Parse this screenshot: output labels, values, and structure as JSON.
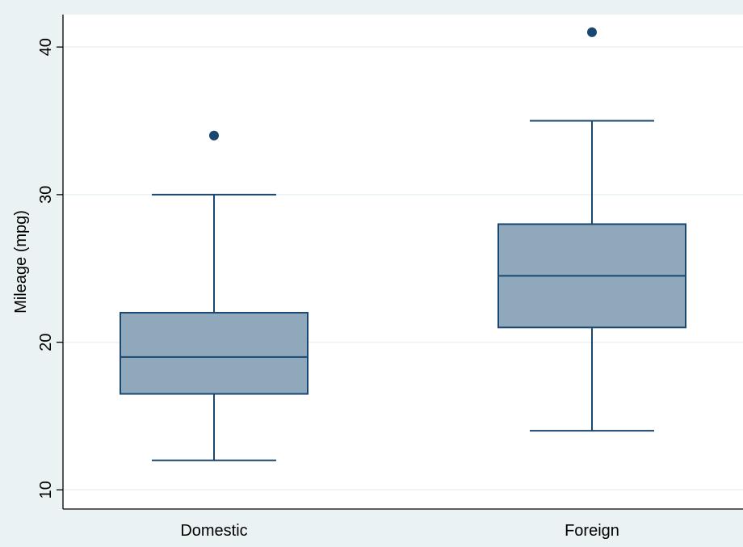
{
  "chart_data": {
    "type": "boxplot",
    "title": "",
    "xlabel": "",
    "ylabel": "Mileage (mpg)",
    "ylim": [
      8.7,
      42.2
    ],
    "yticks": [
      10,
      20,
      30,
      40
    ],
    "grid": true,
    "orientation": "vertical",
    "categories": [
      "Domestic",
      "Foreign"
    ],
    "boxes": [
      {
        "category": "Domestic",
        "whisker_low": 12,
        "q1": 16.5,
        "median": 19,
        "q3": 22,
        "whisker_high": 30,
        "outliers": [
          34
        ]
      },
      {
        "category": "Foreign",
        "whisker_low": 14,
        "q1": 21,
        "median": 24.5,
        "q3": 28,
        "whisker_high": 35,
        "outliers": [
          41
        ]
      }
    ],
    "colors": {
      "background": "#eaf2f3",
      "plot_area": "#ffffff",
      "grid": "#eaf2f3",
      "box_fill": "#90a8bb",
      "box_stroke": "#1a476f",
      "marker": "#1a476f",
      "axis": "#000000"
    }
  }
}
